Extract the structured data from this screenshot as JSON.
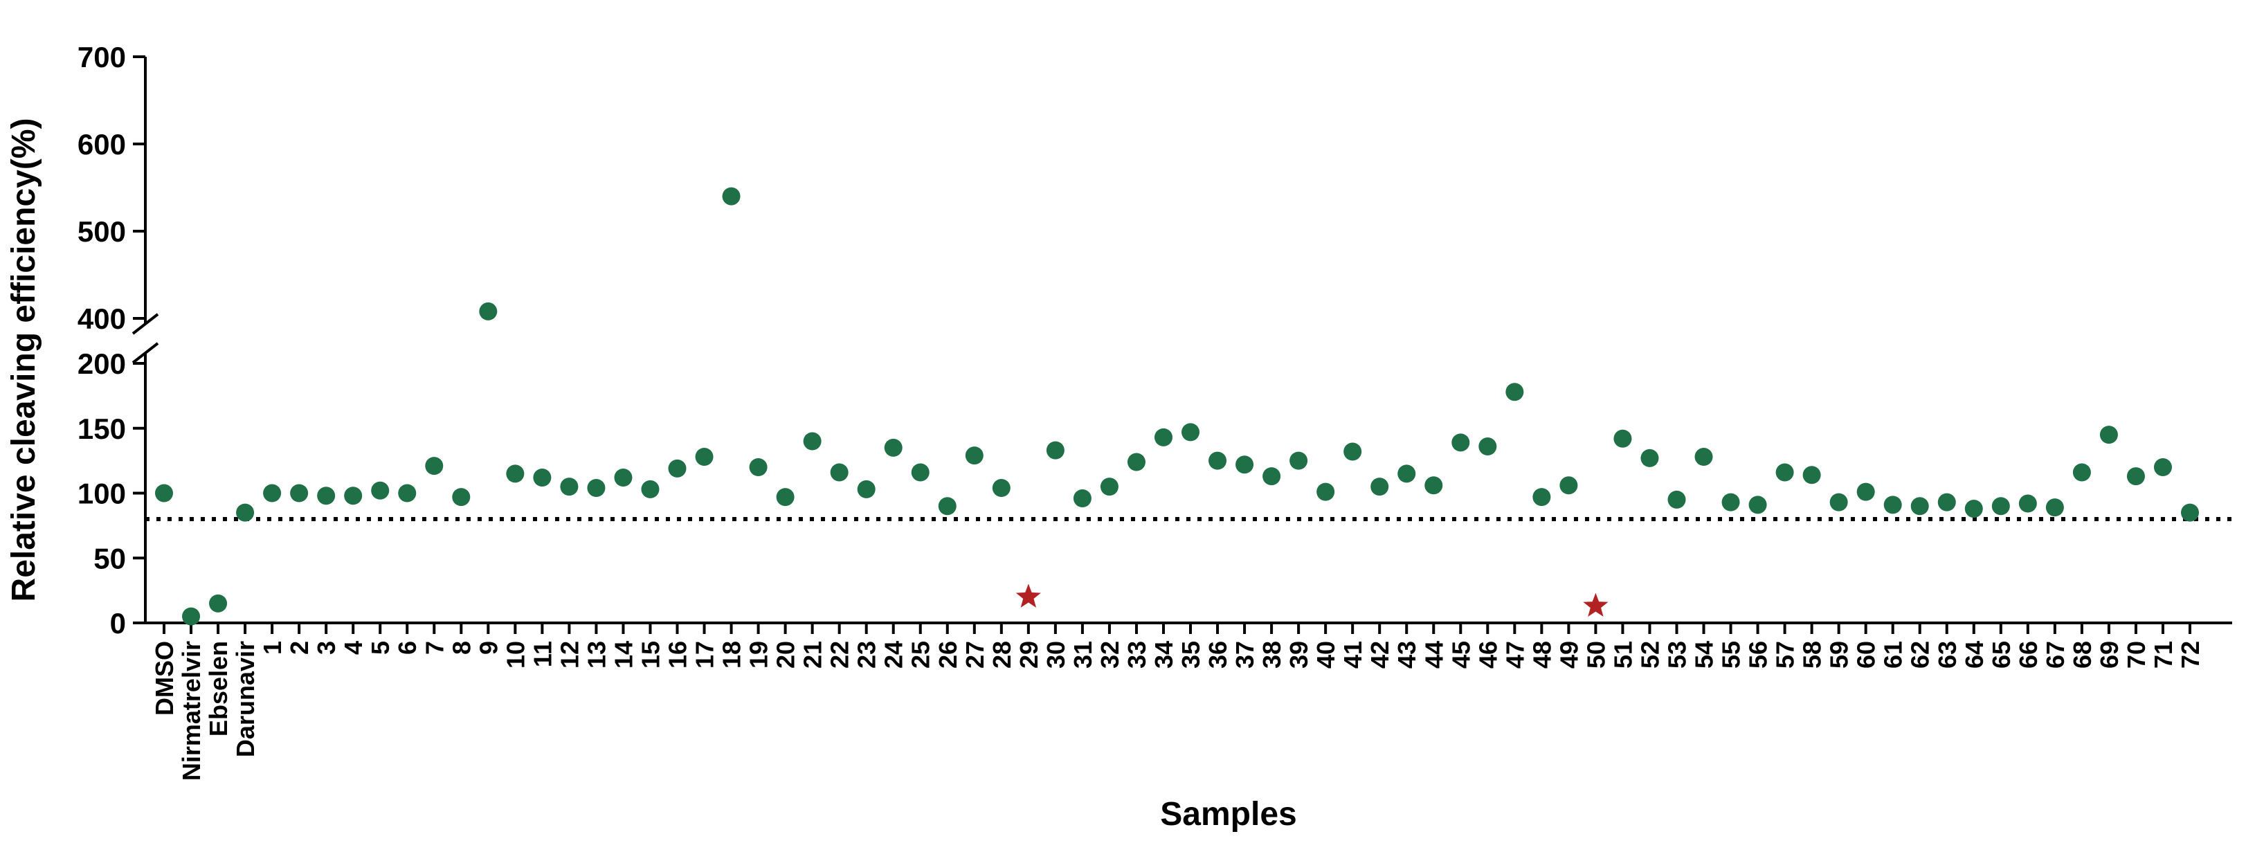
{
  "chart_data": {
    "type": "scatter",
    "xlabel": "Samples",
    "ylabel": "Relative cleaving  efficiency(%)",
    "ylim_lower": [
      0,
      200
    ],
    "ylim_upper": [
      400,
      700
    ],
    "y_axis_break": [
      200,
      400
    ],
    "yticks_lower": [
      0,
      50,
      100,
      150,
      200
    ],
    "yticks_upper": [
      400,
      500,
      600,
      700
    ],
    "threshold": 80,
    "grid": false,
    "colors": {
      "point": "#1f6f47",
      "star": "#b22222",
      "axis": "#000000"
    },
    "categories": [
      "DMSO",
      "Nirmatrelvir",
      "Ebselen",
      "Darunavir",
      "1",
      "2",
      "3",
      "4",
      "5",
      "6",
      "7",
      "8",
      "9",
      "10",
      "11",
      "12",
      "13",
      "14",
      "15",
      "16",
      "17",
      "18",
      "19",
      "20",
      "21",
      "22",
      "23",
      "24",
      "25",
      "26",
      "27",
      "28",
      "29",
      "30",
      "31",
      "32",
      "33",
      "34",
      "35",
      "36",
      "37",
      "38",
      "39",
      "40",
      "41",
      "42",
      "43",
      "44",
      "45",
      "46",
      "47",
      "48",
      "49",
      "50",
      "51",
      "52",
      "53",
      "54",
      "55",
      "56",
      "57",
      "58",
      "59",
      "60",
      "61",
      "62",
      "63",
      "64",
      "65",
      "66",
      "67",
      "68",
      "69",
      "70",
      "71",
      "72"
    ],
    "values": [
      100,
      5,
      15,
      85,
      100,
      100,
      98,
      98,
      102,
      100,
      121,
      97,
      408,
      115,
      112,
      105,
      104,
      112,
      103,
      119,
      128,
      540,
      120,
      97,
      140,
      116,
      103,
      135,
      116,
      90,
      129,
      104,
      20,
      133,
      96,
      105,
      124,
      143,
      147,
      125,
      122,
      113,
      125,
      101,
      132,
      105,
      115,
      106,
      139,
      136,
      178,
      97,
      106,
      13,
      142,
      127,
      95,
      128,
      93,
      91,
      116,
      114,
      93,
      101,
      91,
      90,
      93,
      88,
      90,
      92,
      89,
      116,
      145,
      113,
      120,
      85
    ],
    "markers": [
      "circle",
      "circle",
      "circle",
      "circle",
      "circle",
      "circle",
      "circle",
      "circle",
      "circle",
      "circle",
      "circle",
      "circle",
      "circle",
      "circle",
      "circle",
      "circle",
      "circle",
      "circle",
      "circle",
      "circle",
      "circle",
      "circle",
      "circle",
      "circle",
      "circle",
      "circle",
      "circle",
      "circle",
      "circle",
      "circle",
      "circle",
      "circle",
      "star",
      "circle",
      "circle",
      "circle",
      "circle",
      "circle",
      "circle",
      "circle",
      "circle",
      "circle",
      "circle",
      "circle",
      "circle",
      "circle",
      "circle",
      "circle",
      "circle",
      "circle",
      "circle",
      "circle",
      "circle",
      "star",
      "circle",
      "circle",
      "circle",
      "circle",
      "circle",
      "circle",
      "circle",
      "circle",
      "circle",
      "circle",
      "circle",
      "circle",
      "circle",
      "circle",
      "circle",
      "circle",
      "circle",
      "circle",
      "circle",
      "circle",
      "circle",
      "circle"
    ]
  }
}
